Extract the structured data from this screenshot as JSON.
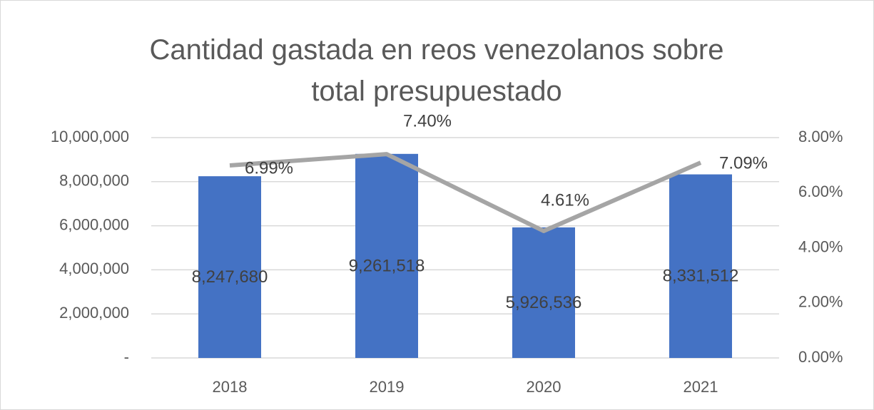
{
  "chart_data": {
    "type": "bar+line",
    "title": "Cantidad gastada en reos venezolanos sobre total presupuestado",
    "categories": [
      "2018",
      "2019",
      "2020",
      "2021"
    ],
    "series": [
      {
        "type": "bar",
        "color": "#4472c4",
        "values": [
          8247680,
          9261518,
          5926536,
          8331512
        ],
        "value_labels": [
          "8,247,680",
          "9,261,518",
          "5,926,536",
          "8,331,512"
        ]
      },
      {
        "type": "line",
        "axis": "y2",
        "color": "#a5a5a5",
        "values": [
          6.99,
          7.4,
          4.61,
          7.09
        ],
        "value_labels": [
          "6.99%",
          "7.40%",
          "4.61%",
          "7.09%"
        ]
      }
    ],
    "ylim": [
      0,
      10000000
    ],
    "yticks": [
      {
        "value": 0,
        "label": "-"
      },
      {
        "value": 2000000,
        "label": "2,000,000"
      },
      {
        "value": 4000000,
        "label": "4,000,000"
      },
      {
        "value": 6000000,
        "label": "6,000,000"
      },
      {
        "value": 8000000,
        "label": "8,000,000"
      },
      {
        "value": 10000000,
        "label": "10,000,000"
      }
    ],
    "y2lim": [
      0,
      8
    ],
    "y2ticks": [
      {
        "value": 0,
        "label": "0.00%"
      },
      {
        "value": 2,
        "label": "2.00%"
      },
      {
        "value": 4,
        "label": "4.00%"
      },
      {
        "value": 6,
        "label": "6.00%"
      },
      {
        "value": 8,
        "label": "8.00%"
      }
    ],
    "grid": true
  }
}
